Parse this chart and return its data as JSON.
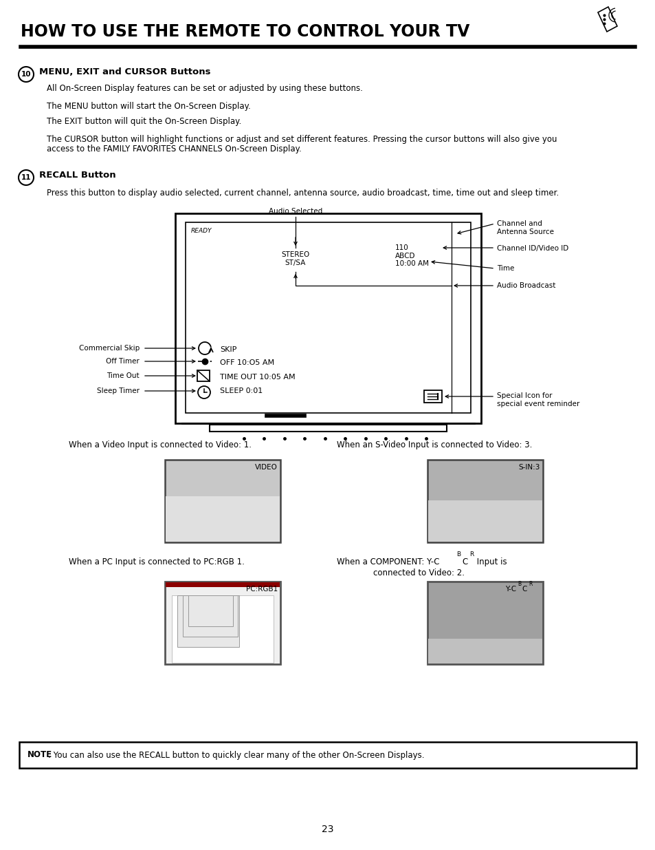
{
  "title": "HOW TO USE THE REMOTE TO CONTROL YOUR TV",
  "bg_color": "#ffffff",
  "section10_heading": "MENU, EXIT and CURSOR Buttons",
  "section10_lines": [
    "All On-Screen Display features can be set or adjusted by using these buttons.",
    "The MENU button will start the On-Screen Display.",
    "The EXIT button will quit the On-Screen Display.",
    "The CURSOR button will highlight functions or adjust and set different features. Pressing the cursor buttons will also give you",
    "access to the FAMILY FAVORITES CHANNELS On-Screen Display."
  ],
  "section11_heading": "RECALL Button",
  "section11_line": "Press this button to display audio selected, current channel, antenna source, audio broadcast, time, time out and sleep timer.",
  "tv_ready": "READY",
  "tv_stereo": "STEREO\nST/SA",
  "tv_channel": "110\nABCD\n10:00 AM",
  "tv_skip": "SKIP",
  "tv_off": "OFF 10:O5 AM",
  "tv_timeout": "TIME OUT 10:05 AM",
  "tv_sleep": "SLEEP 0:01",
  "lbl_audio_sel": "Audio Selected",
  "lbl_ch_antenna": "Channel and\nAntenna Source",
  "lbl_ch_id": "Channel ID/Video ID",
  "lbl_time": "Time",
  "lbl_audio_bcast": "Audio Broadcast",
  "lbl_comm_skip": "Commercial Skip",
  "lbl_off_timer": "Off Timer",
  "lbl_time_out": "Time Out",
  "lbl_sleep_timer": "Sleep Timer",
  "lbl_special": "Special Icon for\nspecial event reminder",
  "cap_video1": "When a Video Input is connected to Video: 1.",
  "cap_svideo3": "When an S-Video Input is connected to Video: 3.",
  "cap_pc_rgb": "When a PC Input is connected to PC:RGB 1.",
  "cap_component_line1": "When a COMPONENT: Y-C",
  "cap_component_line2": "connected to Video: 2.",
  "lbl_video": "VIDEO",
  "lbl_sin3": "S-IN:3",
  "lbl_pcrgb1": "PC:RGB1",
  "lbl_ycbcr": "Y-C",
  "note_bold": "NOTE",
  "note_text": ": You can also use the RECALL button to quickly clear many of the other On-Screen Displays.",
  "page_num": "23"
}
